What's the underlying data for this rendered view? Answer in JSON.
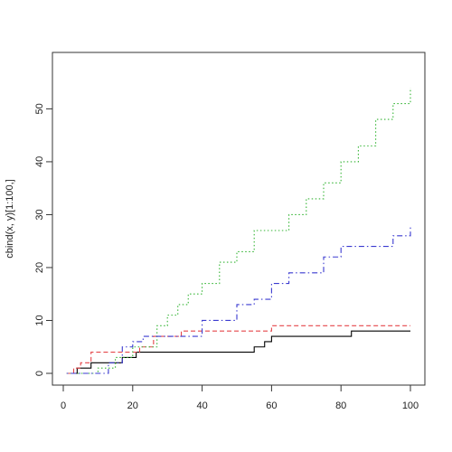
{
  "chart_data": {
    "type": "line",
    "title": "",
    "xlabel": "",
    "ylabel": "cbind(x, y)[1:100,]",
    "xlim": [
      0,
      100
    ],
    "ylim": [
      0,
      55
    ],
    "x_ticks": [
      "0",
      "20",
      "40",
      "60",
      "80",
      "100"
    ],
    "y_ticks": [
      "0",
      "10",
      "20",
      "30",
      "40",
      "50"
    ],
    "grid": false,
    "legend": "none",
    "series": [
      {
        "color": "#000000",
        "dash": "solid",
        "x": [
          1,
          4,
          8,
          13,
          17,
          21,
          45,
          55,
          58,
          60,
          83,
          100
        ],
        "y": [
          0,
          1,
          2,
          2,
          3,
          4,
          4,
          5,
          6,
          7,
          8,
          8
        ]
      },
      {
        "color": "#e5464a",
        "dash": "dashed",
        "x": [
          1,
          3,
          5,
          8,
          15,
          22,
          26,
          30,
          34,
          40,
          60,
          100
        ],
        "y": [
          0,
          1,
          2,
          4,
          4,
          5,
          7,
          7,
          8,
          8,
          9,
          9
        ]
      },
      {
        "color": "#35b535",
        "dash": "dotted",
        "x": [
          1,
          5,
          10,
          15,
          20,
          24,
          27,
          30,
          33,
          36,
          40,
          45,
          50,
          55,
          60,
          65,
          70,
          75,
          80,
          85,
          90,
          95,
          100
        ],
        "y": [
          0,
          0,
          1,
          3,
          5,
          5,
          9,
          11,
          13,
          15,
          17,
          21,
          23,
          27,
          27,
          30,
          33,
          36,
          40,
          43,
          48,
          51,
          54
        ]
      },
      {
        "color": "#3a3ad0",
        "dash": "dotdash",
        "x": [
          1,
          10,
          13,
          17,
          20,
          23,
          36,
          40,
          45,
          50,
          55,
          60,
          65,
          70,
          75,
          80,
          85,
          90,
          95,
          100
        ],
        "y": [
          0,
          0,
          2,
          5,
          6,
          7,
          7,
          10,
          10,
          13,
          14,
          17,
          19,
          19,
          22,
          24,
          24,
          24,
          26,
          28
        ]
      }
    ]
  }
}
